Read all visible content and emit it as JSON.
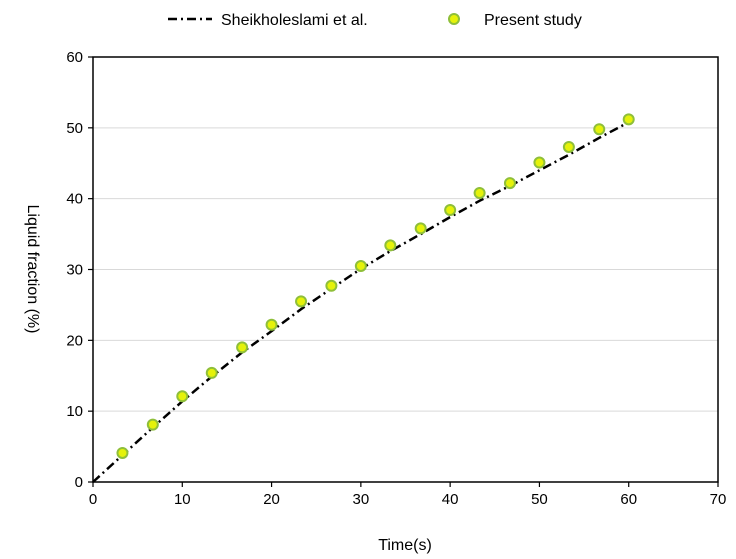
{
  "chart_data": {
    "type": "line",
    "xlabel": "Time(s)",
    "ylabel": "Liquid fraction (%)",
    "xlim": [
      0,
      70
    ],
    "ylim": [
      0,
      60
    ],
    "xticks": [
      "0",
      "10",
      "20",
      "30",
      "40",
      "50",
      "60",
      "70"
    ],
    "yticks": [
      "0",
      "10",
      "20",
      "30",
      "40",
      "50",
      "60"
    ],
    "grid": "horizontal",
    "legend_position": "top-center",
    "series": [
      {
        "name": "Sheikholeslami et al.",
        "style": "dash-dot line",
        "color": "#000000",
        "x": [
          0,
          3.3,
          6.7,
          10,
          13.3,
          16.7,
          20,
          23.3,
          26.7,
          30,
          33.3,
          36.7,
          40,
          43.3,
          46.7,
          50,
          53.3,
          56.7,
          60
        ],
        "y": [
          0,
          3.8,
          7.7,
          11.4,
          14.9,
          18.3,
          21.3,
          24.4,
          27.3,
          30.1,
          32.6,
          35.0,
          37.4,
          39.7,
          41.8,
          44.0,
          46.2,
          48.6,
          50.8
        ]
      },
      {
        "name": "Present study",
        "style": "markers",
        "color": "#e5f20a",
        "edge_color": "#8fbf3a",
        "x": [
          3.3,
          6.7,
          10,
          13.3,
          16.7,
          20,
          23.3,
          26.7,
          30,
          33.3,
          36.7,
          40,
          43.3,
          46.7,
          50,
          53.3,
          56.7,
          60
        ],
        "y": [
          4.1,
          8.1,
          12.1,
          15.4,
          19.0,
          22.2,
          25.5,
          27.7,
          30.5,
          33.4,
          35.8,
          38.4,
          40.8,
          42.2,
          45.1,
          47.3,
          49.8,
          51.2
        ]
      }
    ]
  }
}
